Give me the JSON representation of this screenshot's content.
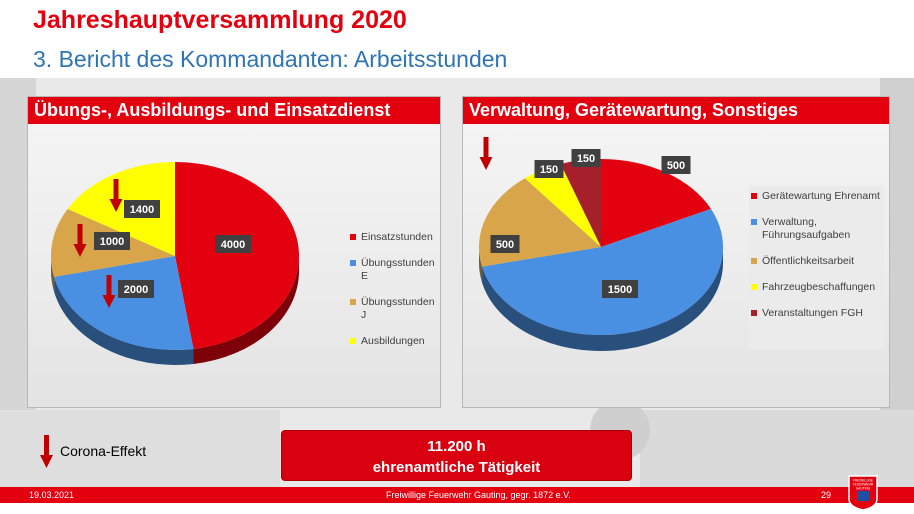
{
  "header": {
    "title": "Jahreshauptversammlung 2020",
    "subtitle": "3. Bericht des Kommandanten: Arbeitsstunden"
  },
  "legend_note": {
    "label": "Corona-Effekt",
    "icon": "down-arrow-icon",
    "color": "#c00000"
  },
  "summary": {
    "line1": "11.200 h",
    "line2": "ehrenamtliche Tätigkeit"
  },
  "footer": {
    "date": "19.03.2021",
    "organization": "Freiwillige Feuerwehr Gauting, gegr. 1872 e.V.",
    "page_number": "29"
  },
  "badge": {
    "text": [
      "FREIWILLIGE",
      "FEUERWEHR",
      "GAUTING"
    ]
  },
  "colors": {
    "accent": "#e3000f",
    "subtitle": "#2e74b5"
  },
  "chart_data": [
    {
      "type": "pie",
      "title": "Übungs-, Ausbildungs- und Einsatzdienst",
      "legend_position": "right",
      "series": [
        {
          "name": "Einsatzstunden",
          "value": 4000,
          "color": "#e3000f",
          "label": "4000",
          "corona_effect": false
        },
        {
          "name": "Übungsstunden E",
          "value": 2000,
          "color": "#4a90e2",
          "label": "2000",
          "corona_effect": true
        },
        {
          "name": "Übungsstunden J",
          "value": 1000,
          "color": "#d9a54a",
          "label": "1000",
          "corona_effect": true
        },
        {
          "name": "Ausbildungen",
          "value": 1400,
          "color": "#ffff00",
          "label": "1400",
          "corona_effect": true
        }
      ]
    },
    {
      "type": "pie",
      "title": "Verwaltung, Gerätewartung, Sonstiges",
      "legend_position": "right",
      "series": [
        {
          "name": "Gerätewartung Ehrenamt",
          "value": 500,
          "color": "#e3000f",
          "label": "500",
          "corona_effect": false
        },
        {
          "name": "Verwaltung, Führungsaufgaben",
          "value": 1500,
          "color": "#4a90e2",
          "label": "1500",
          "corona_effect": false
        },
        {
          "name": "Öffentlichkeitsarbeit",
          "value": 500,
          "color": "#d9a54a",
          "label": "500",
          "corona_effect": true
        },
        {
          "name": "Fahrzeugbeschaffungen",
          "value": 150,
          "color": "#ffff00",
          "label": "150",
          "corona_effect": false
        },
        {
          "name": "Veranstaltungen FGH",
          "value": 150,
          "color": "#a5202a",
          "label": "150",
          "corona_effect": false
        }
      ]
    }
  ]
}
